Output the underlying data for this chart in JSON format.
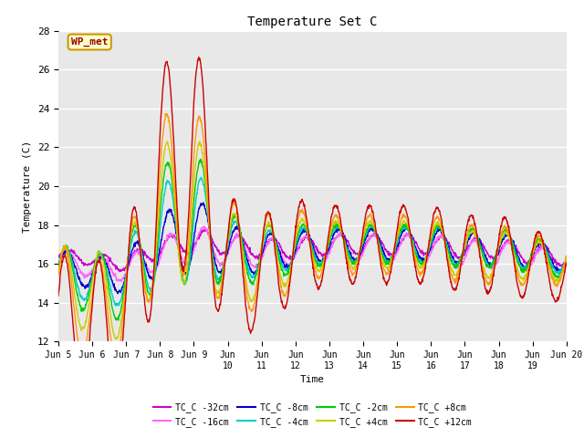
{
  "title": "Temperature Set C",
  "xlabel": "Time",
  "ylabel": "Temperature (C)",
  "xlim": [
    0,
    15
  ],
  "ylim": [
    12,
    28
  ],
  "yticks": [
    12,
    14,
    16,
    18,
    20,
    22,
    24,
    26,
    28
  ],
  "xtick_labels": [
    "Jun 5",
    "Jun 6",
    "Jun 7",
    "Jun 8",
    "Jun 9",
    "Jun\n10",
    "Jun\n11",
    "Jun\n12",
    "Jun\n13",
    "Jun\n14",
    "Jun\n15",
    "Jun\n16",
    "Jun\n17",
    "Jun\n18",
    "Jun\n19",
    "Jun 20"
  ],
  "annotation_text": "WP_met",
  "annotation_bg": "#ffffcc",
  "annotation_border": "#cc9900",
  "annotation_text_color": "#990000",
  "series": [
    {
      "label": "TC_C -32cm",
      "color": "#cc00cc"
    },
    {
      "label": "TC_C -16cm",
      "color": "#ff66ff"
    },
    {
      "label": "TC_C -8cm",
      "color": "#0000cc"
    },
    {
      "label": "TC_C -4cm",
      "color": "#00cccc"
    },
    {
      "label": "TC_C -2cm",
      "color": "#00cc00"
    },
    {
      "label": "TC_C +4cm",
      "color": "#cccc00"
    },
    {
      "label": "TC_C +8cm",
      "color": "#ff9900"
    },
    {
      "label": "TC_C +12cm",
      "color": "#cc0000"
    }
  ],
  "bg_color": "#e8e8e8",
  "grid_color": "#ffffff",
  "font_family": "monospace"
}
